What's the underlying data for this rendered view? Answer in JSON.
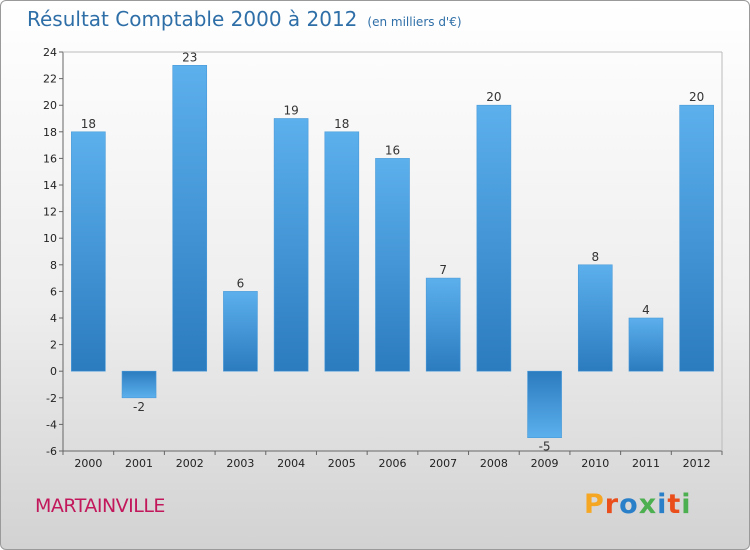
{
  "title": "Résultat Comptable 2000 à 2012",
  "subtitle": "(en milliers d'€)",
  "city": "MARTAINVILLE",
  "logo": {
    "letters": [
      "P",
      "r",
      "o",
      "x",
      "i",
      "t",
      "i"
    ],
    "colors": [
      "#f5a623",
      "#e94e1b",
      "#2a7fc9",
      "#4caf50",
      "#2a7fc9",
      "#e94e1b",
      "#4caf50"
    ]
  },
  "colors": {
    "bar_top": "#5cb0ec",
    "bar_bottom": "#2b7bbf",
    "title": "#2f6fa8",
    "city": "#c2185b"
  },
  "chart_data": {
    "type": "bar",
    "title": "Résultat Comptable 2000 à 2012",
    "subtitle": "(en milliers d'€)",
    "xlabel": "",
    "ylabel": "",
    "categories": [
      "2000",
      "2001",
      "2002",
      "2003",
      "2004",
      "2005",
      "2006",
      "2007",
      "2008",
      "2009",
      "2010",
      "2011",
      "2012"
    ],
    "values": [
      18,
      -2,
      23,
      6,
      19,
      18,
      16,
      7,
      20,
      -5,
      8,
      4,
      20
    ],
    "ylim": [
      -6,
      24
    ],
    "yticks": [
      -6,
      -4,
      -2,
      0,
      2,
      4,
      6,
      8,
      10,
      12,
      14,
      16,
      18,
      20,
      22,
      24
    ],
    "grid": false,
    "legend": "none"
  }
}
